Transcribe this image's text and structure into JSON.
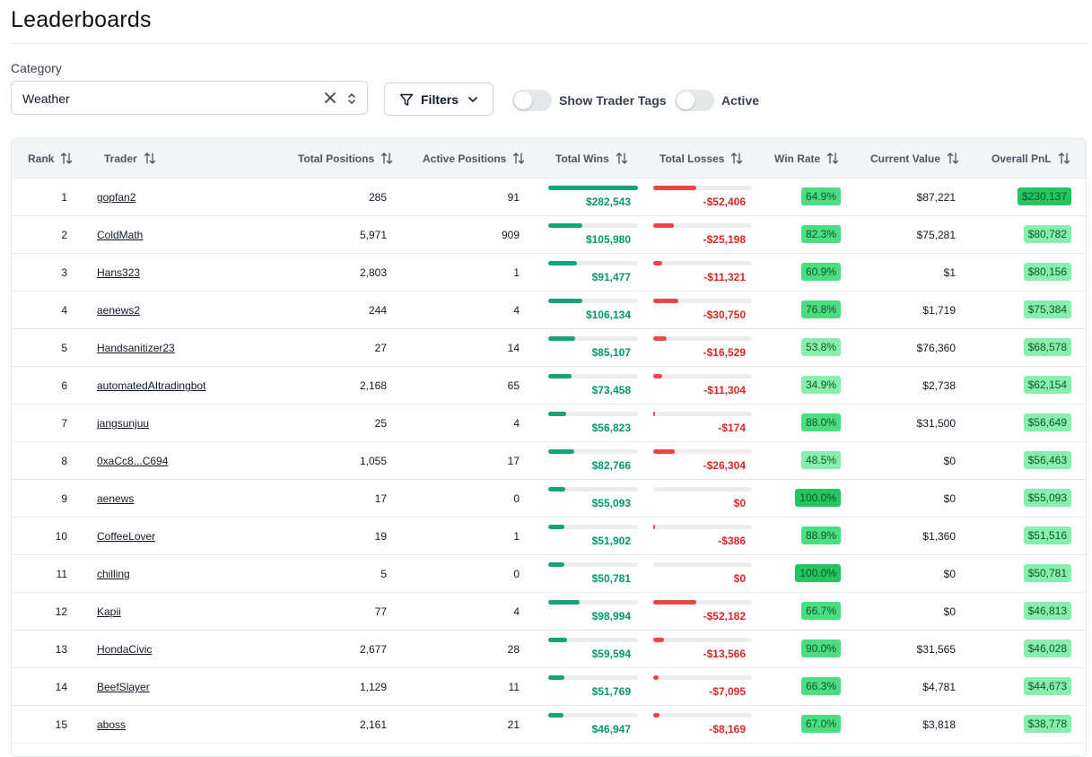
{
  "page": {
    "title": "Leaderboards"
  },
  "filters": {
    "category_label": "Category",
    "category_value": "Weather",
    "filters_button_label": "Filters",
    "show_trader_tags_label": "Show Trader Tags",
    "active_label": "Active",
    "show_trader_tags_on": false,
    "active_on": false
  },
  "table": {
    "columns": [
      "Rank",
      "Trader",
      "Total Positions",
      "Active Positions",
      "Total Wins",
      "Total Losses",
      "Win Rate",
      "Current Value",
      "Overall PnL"
    ],
    "rows": [
      {
        "rank": "1",
        "trader": "gopfan2",
        "total_positions": "285",
        "active_positions": "91",
        "total_wins": "$282,543",
        "total_losses": "-$52,406",
        "win_rate": "64.9%",
        "current_value": "$87,221",
        "overall_pnl": "$230,137"
      },
      {
        "rank": "2",
        "trader": "ColdMath",
        "total_positions": "5,971",
        "active_positions": "909",
        "total_wins": "$105,980",
        "total_losses": "-$25,198",
        "win_rate": "82.3%",
        "current_value": "$75,281",
        "overall_pnl": "$80,782"
      },
      {
        "rank": "3",
        "trader": "Hans323",
        "total_positions": "2,803",
        "active_positions": "1",
        "total_wins": "$91,477",
        "total_losses": "-$11,321",
        "win_rate": "60.9%",
        "current_value": "$1",
        "overall_pnl": "$80,156"
      },
      {
        "rank": "4",
        "trader": "aenews2",
        "total_positions": "244",
        "active_positions": "4",
        "total_wins": "$106,134",
        "total_losses": "-$30,750",
        "win_rate": "76.8%",
        "current_value": "$1,719",
        "overall_pnl": "$75,384"
      },
      {
        "rank": "5",
        "trader": "Handsanitizer23",
        "total_positions": "27",
        "active_positions": "14",
        "total_wins": "$85,107",
        "total_losses": "-$16,529",
        "win_rate": "53.8%",
        "current_value": "$76,360",
        "overall_pnl": "$68,578"
      },
      {
        "rank": "6",
        "trader": "automatedAItradingbot",
        "total_positions": "2,168",
        "active_positions": "65",
        "total_wins": "$73,458",
        "total_losses": "-$11,304",
        "win_rate": "34.9%",
        "current_value": "$2,738",
        "overall_pnl": "$62,154"
      },
      {
        "rank": "7",
        "trader": "jangsunjuu",
        "total_positions": "25",
        "active_positions": "4",
        "total_wins": "$56,823",
        "total_losses": "-$174",
        "win_rate": "88.0%",
        "current_value": "$31,500",
        "overall_pnl": "$56,649"
      },
      {
        "rank": "8",
        "trader": "0xaCc8...C694",
        "total_positions": "1,055",
        "active_positions": "17",
        "total_wins": "$82,766",
        "total_losses": "-$26,304",
        "win_rate": "48.5%",
        "current_value": "$0",
        "overall_pnl": "$56,463"
      },
      {
        "rank": "9",
        "trader": "aenews",
        "total_positions": "17",
        "active_positions": "0",
        "total_wins": "$55,093",
        "total_losses": "$0",
        "win_rate": "100.0%",
        "current_value": "$0",
        "overall_pnl": "$55,093"
      },
      {
        "rank": "10",
        "trader": "CoffeeLover",
        "total_positions": "19",
        "active_positions": "1",
        "total_wins": "$51,902",
        "total_losses": "-$386",
        "win_rate": "88.9%",
        "current_value": "$1,360",
        "overall_pnl": "$51,516"
      },
      {
        "rank": "11",
        "trader": "chilling",
        "total_positions": "5",
        "active_positions": "0",
        "total_wins": "$50,781",
        "total_losses": "$0",
        "win_rate": "100.0%",
        "current_value": "$0",
        "overall_pnl": "$50,781"
      },
      {
        "rank": "12",
        "trader": "Kapii",
        "total_positions": "77",
        "active_positions": "4",
        "total_wins": "$98,994",
        "total_losses": "-$52,182",
        "win_rate": "66.7%",
        "current_value": "$0",
        "overall_pnl": "$46,813"
      },
      {
        "rank": "13",
        "trader": "HondaCivic",
        "total_positions": "2,677",
        "active_positions": "28",
        "total_wins": "$59,594",
        "total_losses": "-$13,566",
        "win_rate": "90.0%",
        "current_value": "$31,565",
        "overall_pnl": "$46,028"
      },
      {
        "rank": "14",
        "trader": "BeefSlayer",
        "total_positions": "1,129",
        "active_positions": "11",
        "total_wins": "$51,769",
        "total_losses": "-$7,095",
        "win_rate": "66.3%",
        "current_value": "$4,781",
        "overall_pnl": "$44,673"
      },
      {
        "rank": "15",
        "trader": "aboss",
        "total_positions": "2,161",
        "active_positions": "21",
        "total_wins": "$46,947",
        "total_losses": "-$8,169",
        "win_rate": "67.0%",
        "current_value": "$3,818",
        "overall_pnl": "$38,778"
      }
    ]
  },
  "colors": {
    "wins_bar": "#16a37b",
    "loss_bar": "#ef4444",
    "wins_text": "#059669",
    "loss_text": "#dc2626",
    "badge_strong": "#22c55e",
    "badge_mid": "#4ade80",
    "badge_light": "#86efac"
  }
}
